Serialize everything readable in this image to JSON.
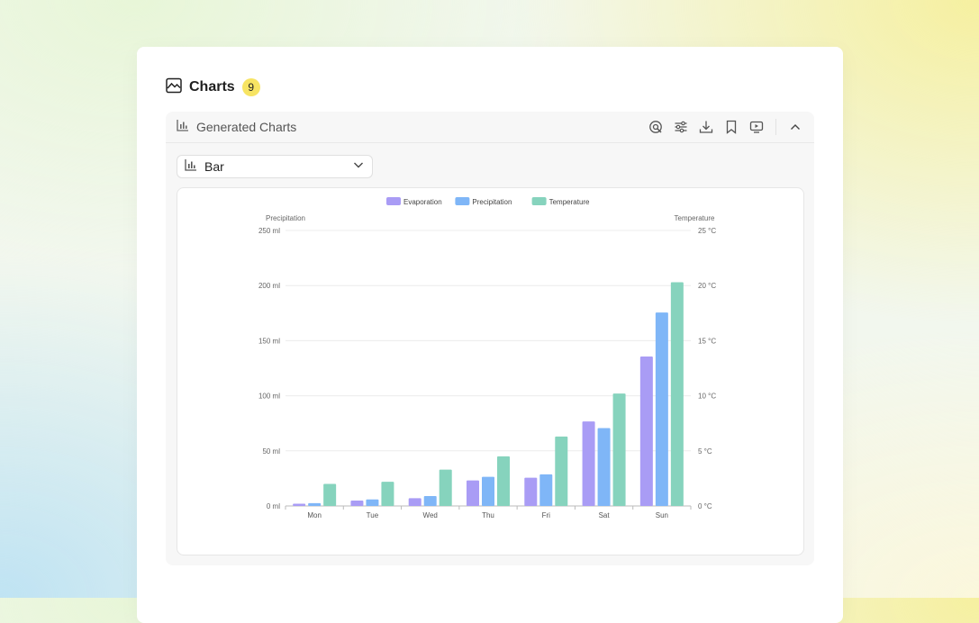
{
  "header": {
    "title": "Charts",
    "count": "9"
  },
  "panel": {
    "title": "Generated Charts",
    "tools": [
      {
        "name": "insight-icon"
      },
      {
        "name": "settings-sliders-icon"
      },
      {
        "name": "download-icon"
      },
      {
        "name": "bookmark-icon"
      },
      {
        "name": "present-icon"
      }
    ]
  },
  "selector": {
    "selected": "Bar"
  },
  "colors": {
    "evaporation": "#a99cf5",
    "precipitation": "#7fb6f7",
    "temperature": "#86d3bd",
    "accent_badge": "#f7e463"
  },
  "chart_data": {
    "type": "bar",
    "categories": [
      "Mon",
      "Tue",
      "Wed",
      "Thu",
      "Fri",
      "Sat",
      "Sun"
    ],
    "series": [
      {
        "name": "Evaporation",
        "axis": "left",
        "values": [
          2,
          4.9,
          7,
          23.2,
          25.6,
          76.7,
          135.6
        ]
      },
      {
        "name": "Precipitation",
        "axis": "left",
        "values": [
          2.6,
          5.9,
          9,
          26.4,
          28.7,
          70.7,
          175.6
        ]
      },
      {
        "name": "Temperature",
        "axis": "right",
        "values": [
          2.0,
          2.2,
          3.3,
          4.5,
          6.3,
          10.2,
          20.3
        ]
      }
    ],
    "y_left": {
      "label": "Precipitation",
      "ticks": [
        "0 ml",
        "50 ml",
        "100 ml",
        "150 ml",
        "200 ml",
        "250 ml"
      ],
      "range": [
        0,
        250
      ]
    },
    "y_right": {
      "label": "Temperature",
      "ticks": [
        "0 °C",
        "5 °C",
        "10 °C",
        "15 °C",
        "20 °C",
        "25 °C"
      ],
      "range": [
        0,
        25
      ]
    },
    "legend_position": "top",
    "grid": true
  }
}
